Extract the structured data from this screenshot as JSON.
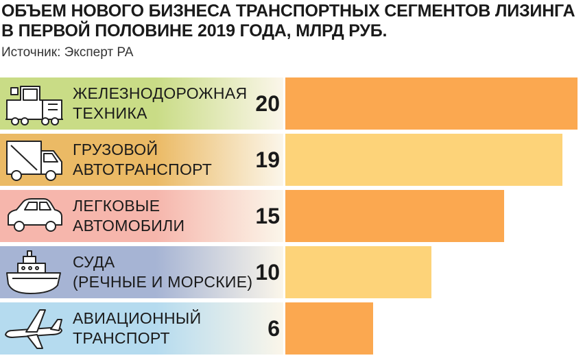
{
  "title_line1": "ОБЪЕМ НОВОГО БИЗНЕСА ТРАНСПОРТНЫХ СЕГМЕНТОВ ЛИЗИНГА",
  "title_line2": "В ПЕРВОЙ ПОЛОВИНЕ 2019 ГОДА, МЛРД РУБ.",
  "source": "Источник: Эксперт РА",
  "chart_data": {
    "type": "bar",
    "orientation": "horizontal",
    "title": "ОБЪЕМ НОВОГО БИЗНЕСА ТРАНСПОРТНЫХ СЕГМЕНТОВ ЛИЗИНГА В ПЕРВОЙ ПОЛОВИНЕ 2019 ГОДА, МЛРД РУБ.",
    "xlim": [
      0,
      20.3
    ],
    "grid": false,
    "legend": "none",
    "categories": [
      {
        "line1": "ЖЕЛЕЗНОДОРОЖНАЯ",
        "line2": "ТЕХНИКА",
        "value_label": "20",
        "icon": "train-icon",
        "row_color": "#c9dc86",
        "bar_color": "#fba850"
      },
      {
        "line1": "ГРУЗОВОЙ",
        "line2": "АВТОТРАНСПОРТ",
        "value_label": "19",
        "icon": "truck-icon",
        "row_color": "#ebba65",
        "bar_color": "#fdd379"
      },
      {
        "line1": "ЛЕГКОВЫЕ",
        "line2": "АВТОМОБИЛИ",
        "value_label": "15",
        "icon": "car-icon",
        "row_color": "#f6b6ac",
        "bar_color": "#fba850"
      },
      {
        "line1": "СУДА",
        "line2": "(РЕЧНЫЕ И МОРСКИЕ)",
        "value_label": "10",
        "icon": "ship-icon",
        "row_color": "#a6b4d4",
        "bar_color": "#fdd379"
      },
      {
        "line1": "АВИАЦИОННЫЙ",
        "line2": "ТРАНСПОРТ",
        "value_label": "6",
        "icon": "airplane-icon",
        "row_color": "#b5dbef",
        "bar_color": "#fba850"
      }
    ],
    "values": [
      20,
      19,
      15,
      10,
      6
    ]
  }
}
